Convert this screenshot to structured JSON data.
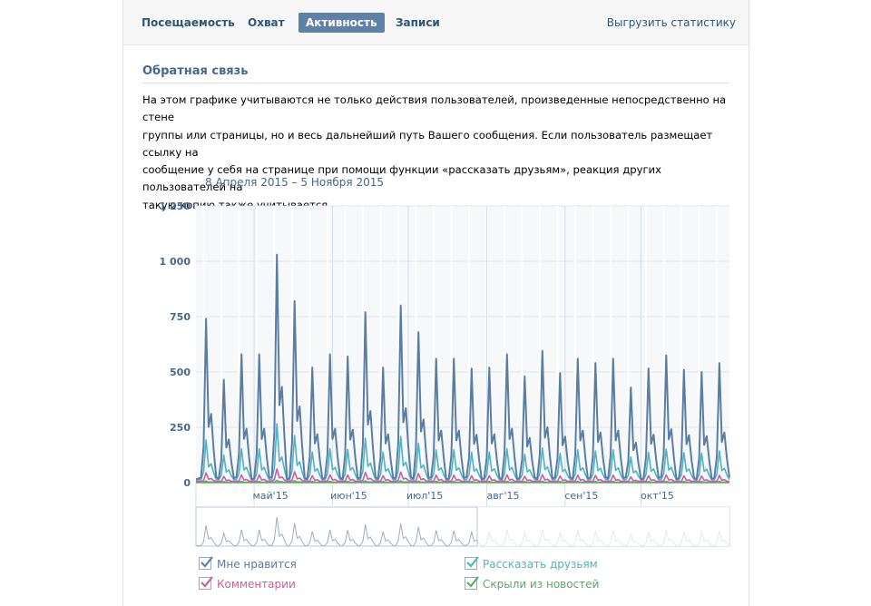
{
  "tabs": [
    {
      "label": "Посещаемость",
      "active": false
    },
    {
      "label": "Охват",
      "active": false
    },
    {
      "label": "Активность",
      "active": true
    },
    {
      "label": "Записи",
      "active": false
    }
  ],
  "export_label": "Выгрузить статистику",
  "section_title": "Обратная связь",
  "description": [
    "На этом графике учитываются не только действия пользователей, произведенные непосредственно на стене",
    "группы или страницы, но и весь дальнейший путь Вашего сообщения. Если пользователь размещает ссылку на",
    "сообщение у себя на странице при помощи функции «рассказать друзьям», реакция других пользователей на",
    "такую копию также учитывается."
  ],
  "date_range": "8 Апреля 2015 – 5 Ноября 2015",
  "colors": {
    "likes": "#597da3",
    "share": "#4fb4c1",
    "comments": "#c85ea0",
    "hidden": "#5ea867",
    "axis_text": "#45688e",
    "grid": "#dfe5eb"
  },
  "chart_data": {
    "type": "line",
    "x_range": [
      "2015-04-08",
      "2015-11-05"
    ],
    "ylim": [
      0,
      1250
    ],
    "y_ticks": [
      "1 250",
      "1 000",
      "750",
      "500",
      "250",
      "0"
    ],
    "y_tick_values": [
      1250,
      1000,
      750,
      500,
      250,
      0
    ],
    "x_tick_labels": [
      "май'15",
      "июн'15",
      "июл'15",
      "авг'15",
      "сен'15",
      "окт'15"
    ],
    "x_tick_dates": [
      "2015-05-01",
      "2015-06-01",
      "2015-07-01",
      "2015-08-01",
      "2015-09-01",
      "2015-10-01"
    ],
    "grid": true,
    "legend_position": "bottom",
    "series": [
      {
        "name": "Мне нравится",
        "key": "likes",
        "checked": true,
        "peaks": [
          [
            "2015-04-12",
            740
          ],
          [
            "2015-04-19",
            465
          ],
          [
            "2015-04-26",
            580
          ],
          [
            "2015-05-03",
            580
          ],
          [
            "2015-05-10",
            1030
          ],
          [
            "2015-05-17",
            820
          ],
          [
            "2015-05-24",
            520
          ],
          [
            "2015-05-31",
            580
          ],
          [
            "2015-06-07",
            570
          ],
          [
            "2015-06-14",
            770
          ],
          [
            "2015-06-21",
            520
          ],
          [
            "2015-06-28",
            800
          ],
          [
            "2015-07-05",
            680
          ],
          [
            "2015-07-12",
            560
          ],
          [
            "2015-07-19",
            560
          ],
          [
            "2015-07-26",
            515
          ],
          [
            "2015-08-02",
            520
          ],
          [
            "2015-08-09",
            580
          ],
          [
            "2015-08-16",
            480
          ],
          [
            "2015-08-23",
            595
          ],
          [
            "2015-08-30",
            495
          ],
          [
            "2015-09-06",
            560
          ],
          [
            "2015-09-13",
            540
          ],
          [
            "2015-09-20",
            560
          ],
          [
            "2015-09-27",
            430
          ],
          [
            "2015-10-04",
            515
          ],
          [
            "2015-10-11",
            575
          ],
          [
            "2015-10-18",
            510
          ],
          [
            "2015-10-25",
            500
          ],
          [
            "2015-11-01",
            540
          ]
        ]
      },
      {
        "name": "Рассказать друзьям",
        "key": "share",
        "checked": true,
        "ratio": 0.25
      },
      {
        "name": "Комментарии",
        "key": "comments",
        "checked": true,
        "ratio": 0.06
      },
      {
        "name": "Скрыли из новостей",
        "key": "hidden",
        "checked": true,
        "ratio": 0.01
      }
    ]
  }
}
